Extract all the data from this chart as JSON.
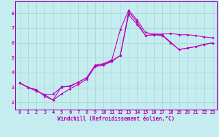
{
  "xlabel": "Windchill (Refroidissement éolien,°C)",
  "bg_color": "#c5ecee",
  "grid_color": "#a8d8dc",
  "line_color": "#bb00bb",
  "spine_color": "#9900aa",
  "xlim": [
    -0.5,
    23.5
  ],
  "ylim": [
    1.5,
    8.8
  ],
  "xticks": [
    0,
    1,
    2,
    3,
    4,
    5,
    6,
    7,
    8,
    9,
    10,
    11,
    12,
    13,
    14,
    15,
    16,
    17,
    18,
    19,
    20,
    21,
    22,
    23
  ],
  "yticks": [
    2,
    3,
    4,
    5,
    6,
    7,
    8
  ],
  "series1_x": [
    0,
    1,
    2,
    3,
    4,
    5,
    6,
    7,
    8,
    9,
    10,
    11,
    12,
    13,
    14,
    15,
    16,
    17,
    18,
    19,
    20,
    21,
    22,
    23
  ],
  "series1_y": [
    3.3,
    3.0,
    2.85,
    2.4,
    2.15,
    3.05,
    3.05,
    3.35,
    3.65,
    4.5,
    4.6,
    4.85,
    6.9,
    8.2,
    7.55,
    6.7,
    6.6,
    6.6,
    6.65,
    6.55,
    6.55,
    6.5,
    6.4,
    6.35
  ],
  "series2_x": [
    0,
    1,
    2,
    3,
    4,
    5,
    6,
    7,
    8,
    9,
    10,
    11,
    12,
    13,
    14,
    15,
    16,
    17,
    18,
    19,
    20,
    21,
    22,
    23
  ],
  "series2_y": [
    3.3,
    3.0,
    2.75,
    2.5,
    2.55,
    3.0,
    3.1,
    3.35,
    3.65,
    4.45,
    4.55,
    4.8,
    5.15,
    7.9,
    7.25,
    6.5,
    6.55,
    6.5,
    6.0,
    5.55,
    5.65,
    5.75,
    5.9,
    6.0
  ],
  "series3_x": [
    0,
    3,
    4,
    5,
    6,
    7,
    8,
    9,
    10,
    11,
    12,
    13,
    14,
    15,
    16,
    17,
    18,
    19,
    20,
    21,
    22,
    23
  ],
  "series3_y": [
    3.3,
    2.5,
    2.15,
    2.55,
    2.9,
    3.2,
    3.55,
    4.4,
    4.5,
    4.75,
    5.15,
    8.1,
    7.4,
    6.5,
    6.55,
    6.55,
    6.05,
    5.55,
    5.65,
    5.75,
    5.9,
    6.0
  ]
}
